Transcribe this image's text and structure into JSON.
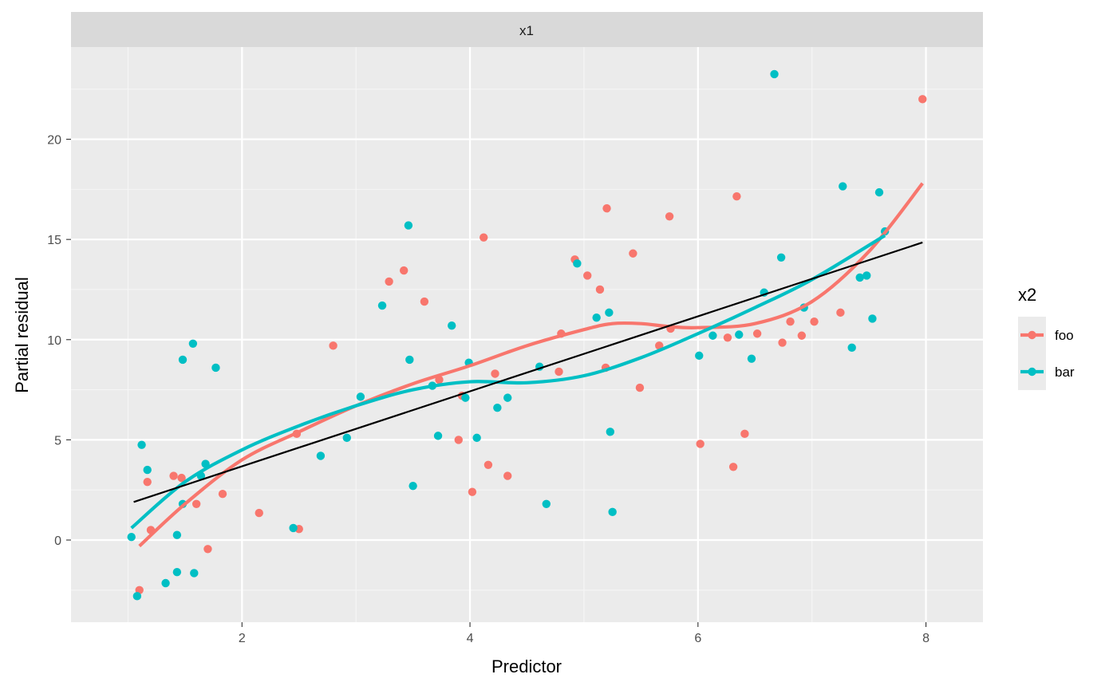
{
  "chart_data": {
    "type": "scatter",
    "facet_label": "x1",
    "xlabel": "Predictor",
    "ylabel": "Partial residual",
    "xlim": [
      0.5,
      8.5
    ],
    "ylim": [
      -4.1,
      24.6
    ],
    "x_ticks": [
      2,
      4,
      6,
      8
    ],
    "y_ticks": [
      0,
      5,
      10,
      15,
      20
    ],
    "x_tick_labels": [
      "2",
      "4",
      "6",
      "8"
    ],
    "y_tick_labels": [
      "0",
      "5",
      "10",
      "15",
      "20"
    ],
    "x_minor_ticks": [
      1,
      3,
      5,
      7
    ],
    "y_minor_ticks": [
      -2.5,
      2.5,
      7.5,
      12.5,
      17.5,
      22.5
    ],
    "grid": true,
    "legend": {
      "title": "x2",
      "position": "right",
      "entries": [
        "foo",
        "bar"
      ]
    },
    "series": [
      {
        "name": "foo",
        "color": "#F8766D",
        "points": [
          [
            1.1,
            -2.5
          ],
          [
            1.17,
            2.9
          ],
          [
            1.2,
            0.5
          ],
          [
            1.4,
            3.2
          ],
          [
            1.47,
            3.1
          ],
          [
            1.6,
            1.8
          ],
          [
            1.7,
            -0.45
          ],
          [
            1.83,
            2.3
          ],
          [
            2.15,
            1.35
          ],
          [
            2.5,
            0.55
          ],
          [
            2.48,
            5.3
          ],
          [
            2.8,
            9.7
          ],
          [
            3.29,
            12.9
          ],
          [
            3.42,
            13.45
          ],
          [
            3.6,
            11.9
          ],
          [
            3.73,
            8.0
          ],
          [
            3.9,
            5.0
          ],
          [
            3.93,
            7.2
          ],
          [
            4.02,
            2.4
          ],
          [
            4.12,
            15.1
          ],
          [
            4.16,
            3.75
          ],
          [
            4.22,
            8.3
          ],
          [
            4.33,
            3.2
          ],
          [
            4.78,
            8.4
          ],
          [
            4.8,
            10.3
          ],
          [
            4.92,
            14.0
          ],
          [
            5.03,
            13.2
          ],
          [
            5.14,
            12.5
          ],
          [
            5.19,
            8.6
          ],
          [
            5.2,
            16.55
          ],
          [
            5.43,
            14.3
          ],
          [
            5.49,
            7.6
          ],
          [
            5.66,
            9.7
          ],
          [
            5.75,
            16.15
          ],
          [
            5.76,
            10.55
          ],
          [
            6.02,
            4.8
          ],
          [
            6.26,
            10.1
          ],
          [
            6.31,
            3.65
          ],
          [
            6.34,
            17.15
          ],
          [
            6.41,
            5.3
          ],
          [
            6.52,
            10.3
          ],
          [
            6.74,
            9.85
          ],
          [
            6.81,
            10.9
          ],
          [
            6.91,
            10.2
          ],
          [
            7.02,
            10.9
          ],
          [
            7.25,
            11.35
          ],
          [
            7.97,
            22.0
          ]
        ],
        "smooth": [
          [
            1.1,
            -0.3
          ],
          [
            1.5,
            1.8
          ],
          [
            2.0,
            4.0
          ],
          [
            2.5,
            5.4
          ],
          [
            3.0,
            6.7
          ],
          [
            3.5,
            7.8
          ],
          [
            4.0,
            8.7
          ],
          [
            4.5,
            9.7
          ],
          [
            5.0,
            10.5
          ],
          [
            5.25,
            10.8
          ],
          [
            5.5,
            10.8
          ],
          [
            5.75,
            10.65
          ],
          [
            6.0,
            10.6
          ],
          [
            6.5,
            10.8
          ],
          [
            7.0,
            11.9
          ],
          [
            7.5,
            14.4
          ],
          [
            7.97,
            17.8
          ]
        ]
      },
      {
        "name": "bar",
        "color": "#00BFC4",
        "points": [
          [
            1.03,
            0.15
          ],
          [
            1.08,
            -2.8
          ],
          [
            1.12,
            4.75
          ],
          [
            1.17,
            3.5
          ],
          [
            1.33,
            -2.15
          ],
          [
            1.43,
            0.25
          ],
          [
            1.43,
            -1.6
          ],
          [
            1.48,
            1.8
          ],
          [
            1.48,
            9.0
          ],
          [
            1.57,
            9.8
          ],
          [
            1.58,
            -1.65
          ],
          [
            1.64,
            3.2
          ],
          [
            1.68,
            3.8
          ],
          [
            1.77,
            8.6
          ],
          [
            2.45,
            0.6
          ],
          [
            2.69,
            4.2
          ],
          [
            2.92,
            5.1
          ],
          [
            3.04,
            7.15
          ],
          [
            3.23,
            11.7
          ],
          [
            3.46,
            15.7
          ],
          [
            3.47,
            9.0
          ],
          [
            3.5,
            2.7
          ],
          [
            3.67,
            7.7
          ],
          [
            3.72,
            5.2
          ],
          [
            3.84,
            10.7
          ],
          [
            3.96,
            7.1
          ],
          [
            3.99,
            8.85
          ],
          [
            4.06,
            5.1
          ],
          [
            4.24,
            6.6
          ],
          [
            4.33,
            7.1
          ],
          [
            4.61,
            8.65
          ],
          [
            4.67,
            1.8
          ],
          [
            4.94,
            13.8
          ],
          [
            5.11,
            11.1
          ],
          [
            5.22,
            11.35
          ],
          [
            5.23,
            5.4
          ],
          [
            5.25,
            1.4
          ],
          [
            6.01,
            9.2
          ],
          [
            6.13,
            10.2
          ],
          [
            6.36,
            10.25
          ],
          [
            6.47,
            9.05
          ],
          [
            6.58,
            12.35
          ],
          [
            6.67,
            23.25
          ],
          [
            6.73,
            14.1
          ],
          [
            6.93,
            11.6
          ],
          [
            7.27,
            17.65
          ],
          [
            7.35,
            9.6
          ],
          [
            7.42,
            13.1
          ],
          [
            7.48,
            13.2
          ],
          [
            7.53,
            11.05
          ],
          [
            7.59,
            17.35
          ],
          [
            7.64,
            15.4
          ]
        ],
        "smooth": [
          [
            1.03,
            0.6
          ],
          [
            1.5,
            2.9
          ],
          [
            2.0,
            4.5
          ],
          [
            2.5,
            5.7
          ],
          [
            3.0,
            6.7
          ],
          [
            3.5,
            7.5
          ],
          [
            4.0,
            7.9
          ],
          [
            4.5,
            7.85
          ],
          [
            5.0,
            8.2
          ],
          [
            5.5,
            9.1
          ],
          [
            6.0,
            10.3
          ],
          [
            6.5,
            11.6
          ],
          [
            7.0,
            13.0
          ],
          [
            7.64,
            15.2
          ]
        ]
      }
    ],
    "fit_line": {
      "color": "#000000",
      "from": [
        1.05,
        1.9
      ],
      "to": [
        7.97,
        14.85
      ]
    }
  }
}
